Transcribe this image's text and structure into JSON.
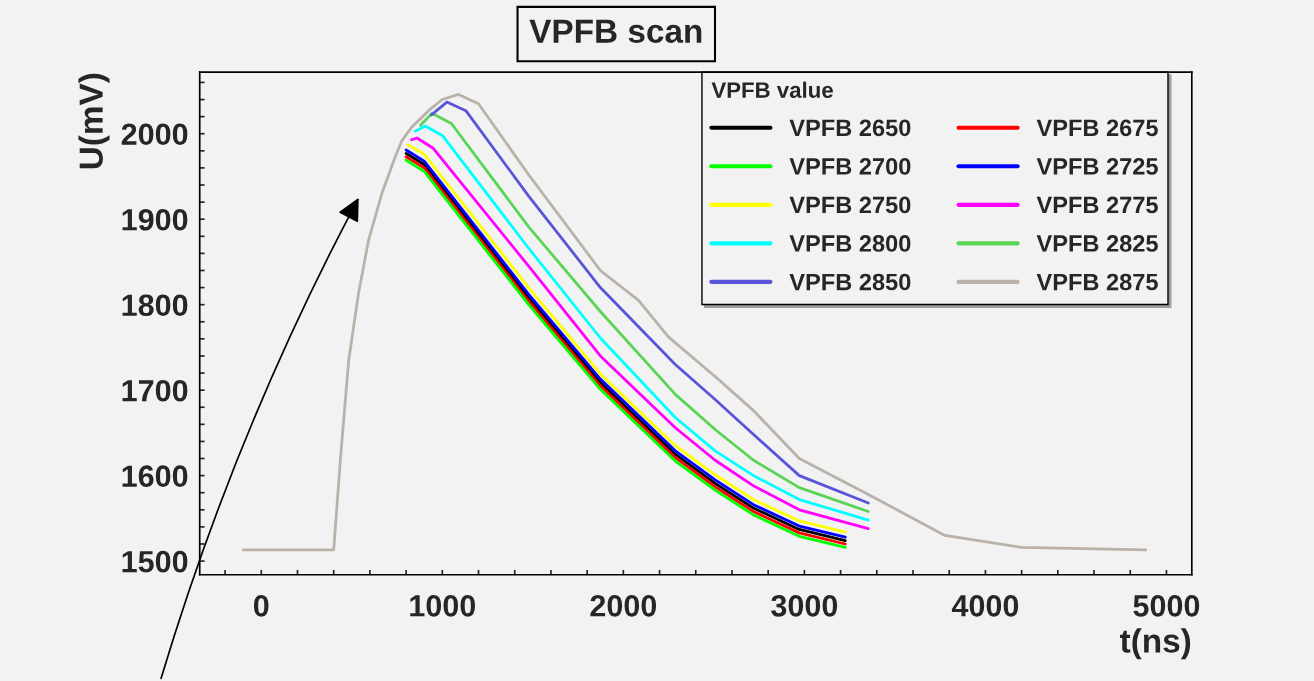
{
  "chart_data": {
    "type": "line",
    "title": "VPFB scan",
    "xlabel": "t(ns)",
    "ylabel": "U(mV)",
    "legend_title": "VPFB value",
    "legend": "top right",
    "grid": false,
    "marker": "none",
    "line_style": "solid",
    "xlim": [
      -340,
      5140
    ],
    "ylim": [
      1484,
      2072
    ],
    "xticks": [
      {
        "value": -200,
        "label": null
      },
      0,
      {
        "value": 200,
        "label": null
      },
      {
        "value": 400,
        "label": null
      },
      {
        "value": 600,
        "label": null
      },
      {
        "value": 800,
        "label": null
      },
      1000,
      {
        "value": 1200,
        "label": null
      },
      {
        "value": 1400,
        "label": null
      },
      {
        "value": 1600,
        "label": null
      },
      {
        "value": 1800,
        "label": null
      },
      2000,
      {
        "value": 2200,
        "label": null
      },
      {
        "value": 2400,
        "label": null
      },
      {
        "value": 2600,
        "label": null
      },
      {
        "value": 2800,
        "label": null
      },
      3000,
      {
        "value": 3200,
        "label": null
      },
      {
        "value": 3400,
        "label": null
      },
      {
        "value": 3600,
        "label": null
      },
      {
        "value": 3800,
        "label": null
      },
      4000,
      {
        "value": 4200,
        "label": null
      },
      {
        "value": 4400,
        "label": null
      },
      {
        "value": 4600,
        "label": null
      },
      {
        "value": 4800,
        "label": null
      },
      5000
    ],
    "yticks": [
      1500,
      {
        "value": 1520,
        "label": null
      },
      {
        "value": 1540,
        "label": null
      },
      {
        "value": 1560,
        "label": null
      },
      {
        "value": 1580,
        "label": null
      },
      1600,
      {
        "value": 1620,
        "label": null
      },
      {
        "value": 1640,
        "label": null
      },
      {
        "value": 1660,
        "label": null
      },
      {
        "value": 1680,
        "label": null
      },
      1700,
      {
        "value": 1720,
        "label": null
      },
      {
        "value": 1740,
        "label": null
      },
      {
        "value": 1760,
        "label": null
      },
      {
        "value": 1780,
        "label": null
      },
      1800,
      {
        "value": 1820,
        "label": null
      },
      {
        "value": 1840,
        "label": null
      },
      {
        "value": 1860,
        "label": null
      },
      {
        "value": 1880,
        "label": null
      },
      1900,
      {
        "value": 1920,
        "label": null
      },
      {
        "value": 1940,
        "label": null
      },
      {
        "value": 1960,
        "label": null
      },
      {
        "value": 1980,
        "label": null
      },
      2000,
      {
        "value": 2020,
        "label": null
      },
      {
        "value": 2040,
        "label": null
      },
      {
        "value": 2060,
        "label": null
      }
    ],
    "series": [
      {
        "name": "VPFB 2650",
        "color": "#000000",
        "x": [
          800,
          900,
          1477,
          1873,
          2287,
          2507,
          2719,
          2972,
          3226
        ],
        "values": [
          1977,
          1964,
          1808,
          1709,
          1625,
          1591,
          1562,
          1537,
          1524
        ]
      },
      {
        "name": "VPFB 2675",
        "color": "#ff0000",
        "x": [
          800,
          900,
          1477,
          1873,
          2287,
          2507,
          2719,
          2972,
          3226
        ],
        "values": [
          1973,
          1960,
          1804,
          1705,
          1621,
          1587,
          1558,
          1533,
          1520
        ]
      },
      {
        "name": "VPFB 2700",
        "color": "#00ff00",
        "x": [
          800,
          900,
          1477,
          1873,
          2287,
          2507,
          2719,
          2972,
          3226
        ],
        "values": [
          1969,
          1956,
          1800,
          1701,
          1617,
          1583,
          1554,
          1529,
          1516
        ]
      },
      {
        "name": "VPFB 2725",
        "color": "#0000ff",
        "x": [
          800,
          900,
          1477,
          1873,
          2287,
          2507,
          2719,
          2972,
          3226
        ],
        "values": [
          1981,
          1968,
          1812,
          1713,
          1629,
          1595,
          1566,
          1541,
          1528
        ]
      },
      {
        "name": "VPFB 2750",
        "color": "#ffff00",
        "x": [
          810,
          900,
          1477,
          1873,
          2287,
          2507,
          2719,
          2972,
          3226
        ],
        "values": [
          1987,
          1976,
          1820,
          1719,
          1635,
          1601,
          1572,
          1547,
          1534
        ]
      },
      {
        "name": "VPFB 2775",
        "color": "#ff00ff",
        "x": [
          830,
          860,
          950,
          1477,
          1873,
          2287,
          2507,
          2719,
          2972,
          3353
        ],
        "values": [
          1993,
          1995,
          1983,
          1845,
          1740,
          1656,
          1618,
          1588,
          1560,
          1538
        ]
      },
      {
        "name": "VPFB 2800",
        "color": "#00ffff",
        "x": [
          850,
          906,
          1000,
          1477,
          1873,
          2287,
          2507,
          2719,
          2972,
          3353
        ],
        "values": [
          2003,
          2009,
          1998,
          1866,
          1761,
          1668,
          1629,
          1600,
          1572,
          1548
        ]
      },
      {
        "name": "VPFB 2825",
        "color": "#59d454",
        "x": [
          880,
          943,
          1050,
          1477,
          1873,
          2287,
          2507,
          2719,
          2972,
          3353
        ],
        "values": [
          2010,
          2024,
          2012,
          1891,
          1792,
          1695,
          1654,
          1618,
          1586,
          1558
        ]
      },
      {
        "name": "VPFB 2850",
        "color": "#5954d9",
        "x": [
          940,
          1025,
          1130,
          1477,
          1873,
          2287,
          2507,
          2719,
          2972,
          3353
        ],
        "values": [
          2022,
          2037,
          2027,
          1927,
          1820,
          1730,
          1689,
          1648,
          1600,
          1568
        ]
      },
      {
        "name": "VPFB 2875",
        "color": "#bab1a8",
        "x": [
          -100,
          400,
          437,
          483,
          537,
          592,
          666,
          740,
          777,
          832,
          924,
          1000,
          1090,
          1200,
          1477,
          1873,
          2084,
          2250,
          2507,
          2719,
          2972,
          3353,
          3776,
          4198,
          4885
        ],
        "values": [
          1513,
          1513,
          1619,
          1735,
          1813,
          1875,
          1930,
          1973,
          1992,
          2008,
          2027,
          2040,
          2046,
          2035,
          1952,
          1840,
          1805,
          1762,
          1716,
          1676,
          1620,
          1578,
          1530,
          1516,
          1513
        ]
      }
    ]
  }
}
